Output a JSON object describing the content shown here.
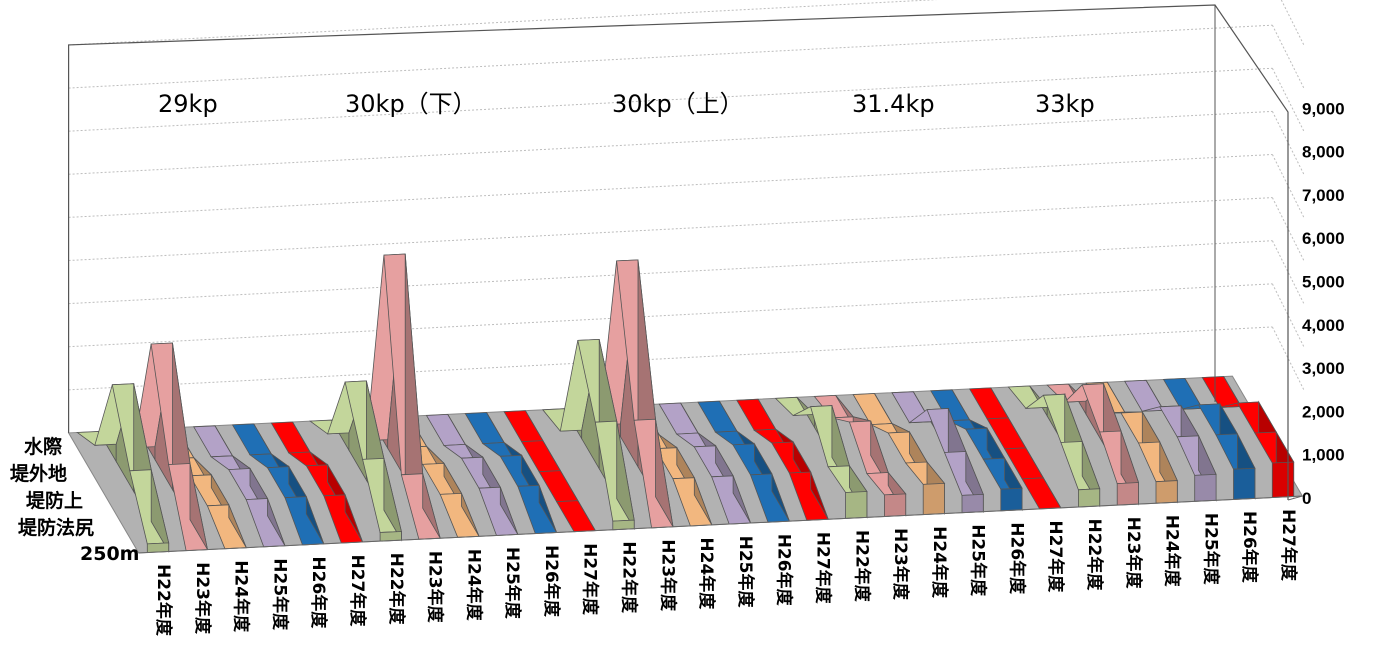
{
  "chart_data": {
    "type": "area-3d",
    "title": "",
    "ylim": [
      0,
      9000
    ],
    "yticks": [
      "0",
      "1,000",
      "2,000",
      "3,000",
      "4,000",
      "5,000",
      "6,000",
      "7,000",
      "8,000",
      "9,000"
    ],
    "ytick_values": [
      0,
      1000,
      2000,
      3000,
      4000,
      5000,
      6000,
      7000,
      8000,
      9000
    ],
    "depth_categories": [
      "水際",
      "堤外地",
      "堤防上",
      "堤防法尻",
      "250m"
    ],
    "groups": [
      {
        "name": "29kp",
        "years": [
          "H22年度",
          "H23年度",
          "H24年度",
          "H25年度",
          "H26年度",
          "H27年度"
        ]
      },
      {
        "name": "30kp（下）",
        "years": [
          "H22年度",
          "H23年度",
          "H24年度",
          "H25年度",
          "H26年度",
          "H27年度"
        ]
      },
      {
        "name": "30kp（上）",
        "years": [
          "H22年度",
          "H23年度",
          "H24年度",
          "H25年度",
          "H26年度",
          "H27年度"
        ]
      },
      {
        "name": "31.4kp",
        "years": [
          "H22年度",
          "H23年度",
          "H24年度",
          "H25年度",
          "H26年度",
          "H27年度"
        ]
      },
      {
        "name": "33kp",
        "years": [
          "H22年度",
          "H23年度",
          "H24年度",
          "H25年度",
          "H26年度",
          "H27年度"
        ]
      }
    ],
    "series": [
      {
        "name": "29kp H22年度",
        "color": "#c3d69b",
        "values": [
          200,
          1200,
          2500,
          400,
          0
        ]
      },
      {
        "name": "29kp H23年度",
        "color": "#e6a0a0",
        "values": [
          0,
          1300,
          3400,
          300,
          0
        ]
      },
      {
        "name": "29kp H24年度",
        "color": "#f2b77f",
        "values": [
          0,
          300,
          300,
          0,
          0
        ]
      },
      {
        "name": "29kp H25年度",
        "color": "#b3a2c7",
        "values": [
          0,
          400,
          400,
          0,
          0
        ]
      },
      {
        "name": "29kp H26年度",
        "color": "#1f6fb5",
        "values": [
          0,
          400,
          400,
          0,
          0
        ]
      },
      {
        "name": "29kp H27年度",
        "color": "#ff0000",
        "values": [
          0,
          400,
          400,
          0,
          0
        ]
      },
      {
        "name": "30kp（下） H22年度",
        "color": "#c3d69b",
        "values": [
          200,
          1200,
          2300,
          400,
          0
        ]
      },
      {
        "name": "30kp（下） H23年度",
        "color": "#e6a0a0",
        "values": [
          0,
          800,
          5200,
          200,
          0
        ]
      },
      {
        "name": "30kp（下） H24年度",
        "color": "#f2b77f",
        "values": [
          0,
          300,
          300,
          0,
          0
        ]
      },
      {
        "name": "30kp（下） H25年度",
        "color": "#b3a2c7",
        "values": [
          0,
          400,
          400,
          0,
          0
        ]
      },
      {
        "name": "30kp（下） H26年度",
        "color": "#1f6fb5",
        "values": [
          0,
          400,
          400,
          0,
          0
        ]
      },
      {
        "name": "30kp（下） H27年度",
        "color": "#ff0000",
        "values": [
          0,
          0,
          0,
          0,
          0
        ]
      },
      {
        "name": "30kp（上） H22年度",
        "color": "#c3d69b",
        "values": [
          200,
          1800,
          3000,
          200,
          0
        ]
      },
      {
        "name": "30kp（上） H23年度",
        "color": "#e6a0a0",
        "values": [
          0,
          1800,
          4800,
          300,
          0
        ]
      },
      {
        "name": "30kp（上） H24年度",
        "color": "#f2b77f",
        "values": [
          0,
          400,
          400,
          0,
          0
        ]
      },
      {
        "name": "30kp（上） H25年度",
        "color": "#b3a2c7",
        "values": [
          0,
          400,
          400,
          0,
          0
        ]
      },
      {
        "name": "30kp（上） H26年度",
        "color": "#1f6fb5",
        "values": [
          0,
          400,
          400,
          0,
          0
        ]
      },
      {
        "name": "30kp（上） H27年度",
        "color": "#ff0000",
        "values": [
          0,
          400,
          400,
          0,
          0
        ]
      },
      {
        "name": "31.4kp H22年度",
        "color": "#c3d69b",
        "values": [
          600,
          500,
          1200,
          300,
          0
        ]
      },
      {
        "name": "31.4kp H23年度",
        "color": "#e6a0a0",
        "values": [
          500,
          300,
          800,
          200,
          0
        ]
      },
      {
        "name": "31.4kp H24年度",
        "color": "#f2b77f",
        "values": [
          700,
          500,
          500,
          0,
          0
        ]
      },
      {
        "name": "31.4kp H25年度",
        "color": "#b3a2c7",
        "values": [
          400,
          700,
          1000,
          0,
          0
        ]
      },
      {
        "name": "31.4kp H26年度",
        "color": "#1f6fb5",
        "values": [
          500,
          500,
          500,
          0,
          0
        ]
      },
      {
        "name": "31.4kp H27年度",
        "color": "#ff0000",
        "values": [
          0,
          0,
          0,
          0,
          0
        ]
      },
      {
        "name": "33kp H22年度",
        "color": "#c3d69b",
        "values": [
          400,
          800,
          1200,
          200,
          0
        ]
      },
      {
        "name": "33kp H23年度",
        "color": "#e6a0a0",
        "values": [
          500,
          1000,
          1400,
          300,
          0
        ]
      },
      {
        "name": "33kp H24年度",
        "color": "#f2b77f",
        "values": [
          500,
          700,
          700,
          0,
          0
        ]
      },
      {
        "name": "33kp H25年度",
        "color": "#b3a2c7",
        "values": [
          600,
          800,
          800,
          0,
          0
        ]
      },
      {
        "name": "33kp H26年度",
        "color": "#1f6fb5",
        "values": [
          700,
          800,
          800,
          0,
          0
        ]
      },
      {
        "name": "33kp H27年度",
        "color": "#ff0000",
        "values": [
          800,
          800,
          800,
          0,
          0
        ]
      }
    ],
    "grid": true,
    "legend": "none"
  }
}
